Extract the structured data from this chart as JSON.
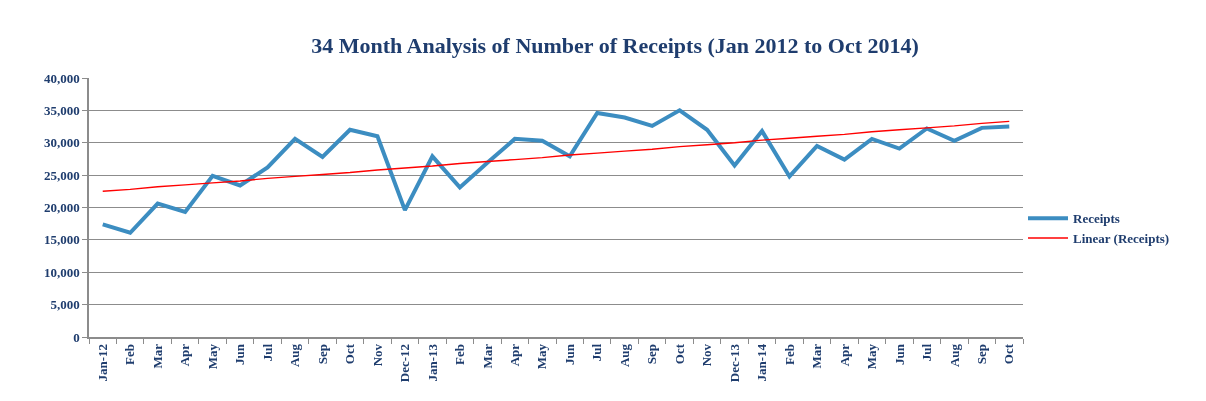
{
  "chart_data": {
    "type": "line",
    "title": "34 Month Analysis of Number of Receipts (Jan 2012 to Oct 2014)",
    "categories": [
      "Jan-12",
      "Feb",
      "Mar",
      "Apr",
      "May",
      "Jun",
      "Jul",
      "Aug",
      "Sep",
      "Oct",
      "Nov",
      "Dec-12",
      "Jan-13",
      "Feb",
      "Mar",
      "Apr",
      "May",
      "Jun",
      "Jul",
      "Aug",
      "Sep",
      "Oct",
      "Nov",
      "Dec-13",
      "Jan-14",
      "Feb",
      "Mar",
      "Apr",
      "May",
      "Jun",
      "Jul",
      "Aug",
      "Sep",
      "Oct"
    ],
    "series": [
      {
        "name": "Receipts",
        "color": "#3c8dc1",
        "values": [
          17400,
          16100,
          20600,
          19300,
          24900,
          23400,
          26200,
          30600,
          27800,
          32000,
          31000,
          19600,
          27900,
          23100,
          26900,
          30600,
          30300,
          27900,
          34600,
          33900,
          32600,
          35000,
          32000,
          26500,
          31800,
          24800,
          29500,
          27400,
          30600,
          29100,
          32200,
          30300,
          32300,
          32500
        ]
      },
      {
        "name": "Linear (Receipts)",
        "color": "#ff0000",
        "values": [
          22500,
          22800,
          23200,
          23500,
          23800,
          24100,
          24500,
          24800,
          25100,
          25400,
          25800,
          26100,
          26400,
          26800,
          27100,
          27400,
          27700,
          28100,
          28400,
          28700,
          29000,
          29400,
          29700,
          30000,
          30400,
          30700,
          31000,
          31300,
          31700,
          32000,
          32300,
          32600,
          33000,
          33300
        ]
      }
    ],
    "ylim": [
      0,
      40000
    ],
    "yticks": [
      0,
      {
        "value": 5000,
        "label": "5,000"
      },
      {
        "value": 10000,
        "label": "10,000"
      },
      {
        "value": 15000,
        "label": "15,000"
      },
      {
        "value": 20000,
        "label": "20,000"
      },
      {
        "value": 25000,
        "label": "25,000"
      },
      {
        "value": 30000,
        "label": "30,000"
      },
      {
        "value": 35000,
        "label": "35,000"
      },
      {
        "value": 40000,
        "label": "40,000"
      }
    ],
    "grid": "y",
    "legend": "right",
    "marker": "none",
    "line_style": "solid"
  }
}
